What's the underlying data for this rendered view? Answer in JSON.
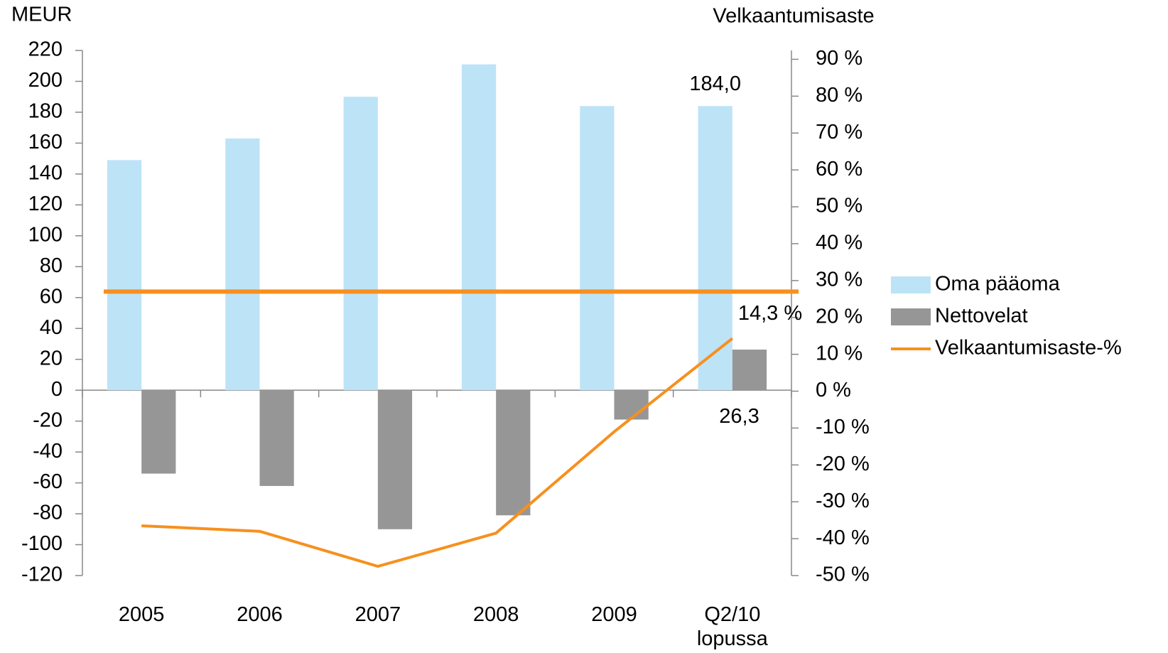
{
  "chart_data": {
    "type": "bar_line",
    "y_axis_label": "MEUR",
    "y2_axis_label": "Velkaantumisaste",
    "categories": [
      "2005",
      "2006",
      "2007",
      "2008",
      "2009",
      "Q2/10 lopussa"
    ],
    "series": [
      {
        "name": "Oma pääoma",
        "type": "bar",
        "color": "#bde3f7",
        "values": [
          149,
          163,
          190,
          211,
          184,
          184.0
        ],
        "value_labels": [
          null,
          null,
          null,
          null,
          null,
          "184,0"
        ]
      },
      {
        "name": "Nettovelat",
        "type": "bar",
        "color": "#969696",
        "values": [
          -54,
          -62,
          -90,
          -81,
          -19,
          26.3
        ],
        "value_labels": [
          null,
          null,
          null,
          null,
          null,
          "26,3"
        ]
      },
      {
        "name": "Velkaantumisaste-%",
        "type": "line",
        "axis": "y2",
        "color": "#f7901e",
        "values": [
          -36.5,
          -38,
          -47.5,
          -38.5,
          -11,
          14.3
        ],
        "value_labels": [
          null,
          null,
          null,
          null,
          null,
          "14,3 %"
        ]
      }
    ],
    "reference_lines": [
      {
        "value": 27,
        "axis": "y2",
        "color": "#f7901e"
      }
    ],
    "ylim": [
      -120,
      220
    ],
    "yticks": [
      -120,
      -100,
      -80,
      -60,
      -40,
      -20,
      0,
      20,
      40,
      60,
      80,
      100,
      120,
      140,
      160,
      180,
      200,
      220
    ],
    "y2lim": [
      -50,
      92.4
    ],
    "y2ticks": [
      {
        "value": -50,
        "label": "-50 %"
      },
      {
        "value": -40,
        "label": "-40 %"
      },
      {
        "value": -30,
        "label": "-30 %"
      },
      {
        "value": -20,
        "label": "-20 %"
      },
      {
        "value": -10,
        "label": "-10 %"
      },
      {
        "value": 0,
        "label": "0 %"
      },
      {
        "value": 10,
        "label": "10 %"
      },
      {
        "value": 20,
        "label": "20 %"
      },
      {
        "value": 30,
        "label": "30 %"
      },
      {
        "value": 40,
        "label": "40 %"
      },
      {
        "value": 50,
        "label": "50 %"
      },
      {
        "value": 60,
        "label": "60 %"
      },
      {
        "value": 70,
        "label": "70 %"
      },
      {
        "value": 80,
        "label": "80 %"
      },
      {
        "value": 90,
        "label": "90 %"
      }
    ],
    "legend": "right",
    "grid": false
  }
}
